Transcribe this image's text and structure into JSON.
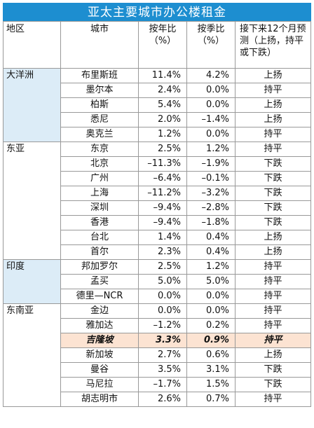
{
  "title": "亚太主要城市办公楼租金",
  "headers": {
    "region": "地区",
    "city": "城市",
    "yoy": "按年比（%）",
    "qoq": "按季比（%）",
    "outlook": "接下来12个月预测（上扬，持平或下跌）"
  },
  "colors": {
    "title_bg": "#1d8ed0",
    "region_shade": "#dcecf7",
    "highlight": "#fce3d2"
  },
  "rows": [
    {
      "region": "大洋洲",
      "city": "布里斯班",
      "yoy": "11.4%",
      "qoq": "4.2%",
      "outlook": "上扬"
    },
    {
      "region": "",
      "city": "墨尔本",
      "yoy": "2.4%",
      "qoq": "0.0%",
      "outlook": "持平"
    },
    {
      "region": "",
      "city": "柏斯",
      "yoy": "5.4%",
      "qoq": "0.0%",
      "outlook": "上扬"
    },
    {
      "region": "",
      "city": "悉尼",
      "yoy": "2.0%",
      "qoq": "–1.4%",
      "outlook": "上扬"
    },
    {
      "region": "",
      "city": "奥克兰",
      "yoy": "1.2%",
      "qoq": "0.0%",
      "outlook": "持平"
    },
    {
      "region": "东亚",
      "city": "东京",
      "yoy": "2.5%",
      "qoq": "1.2%",
      "outlook": "持平"
    },
    {
      "region": "",
      "city": "北京",
      "yoy": "–11.3%",
      "qoq": "–1.9%",
      "outlook": "下跌"
    },
    {
      "region": "",
      "city": "广州",
      "yoy": "–6.4%",
      "qoq": "–0.1%",
      "outlook": "下跌"
    },
    {
      "region": "",
      "city": "上海",
      "yoy": "–11.2%",
      "qoq": "–3.2%",
      "outlook": "下跌"
    },
    {
      "region": "",
      "city": "深圳",
      "yoy": "–9.4%",
      "qoq": "–2.8%",
      "outlook": "下跌"
    },
    {
      "region": "",
      "city": "香港",
      "yoy": "–9.4%",
      "qoq": "–1.8%",
      "outlook": "下跌"
    },
    {
      "region": "",
      "city": "台北",
      "yoy": "1.4%",
      "qoq": "0.4%",
      "outlook": "上扬"
    },
    {
      "region": "",
      "city": "首尔",
      "yoy": "2.3%",
      "qoq": "0.4%",
      "outlook": "上扬"
    },
    {
      "region": "印度",
      "city": "邦加罗尔",
      "yoy": "2.5%",
      "qoq": "1.2%",
      "outlook": "持平"
    },
    {
      "region": "",
      "city": "孟买",
      "yoy": "5.0%",
      "qoq": "5.0%",
      "outlook": "持平"
    },
    {
      "region": "",
      "city": "德里—NCR",
      "yoy": "0.0%",
      "qoq": "0.0%",
      "outlook": "持平"
    },
    {
      "region": "东南亚",
      "city": "金边",
      "yoy": "0.0%",
      "qoq": "0.0%",
      "outlook": "持平"
    },
    {
      "region": "",
      "city": "雅加达",
      "yoy": "–1.2%",
      "qoq": "0.2%",
      "outlook": "持平"
    },
    {
      "region": "",
      "city": "吉隆坡",
      "yoy": "3.3%",
      "qoq": "0.9%",
      "outlook": "持平"
    },
    {
      "region": "",
      "city": "新加坡",
      "yoy": "2.7%",
      "qoq": "0.6%",
      "outlook": "上扬"
    },
    {
      "region": "",
      "city": "曼谷",
      "yoy": "3.5%",
      "qoq": "3.1%",
      "outlook": "下跌"
    },
    {
      "region": "",
      "city": "马尼拉",
      "yoy": "–1.7%",
      "qoq": "1.5%",
      "outlook": "下跌"
    },
    {
      "region": "",
      "city": "胡志明市",
      "yoy": "2.6%",
      "qoq": "0.7%",
      "outlook": "持平"
    }
  ]
}
